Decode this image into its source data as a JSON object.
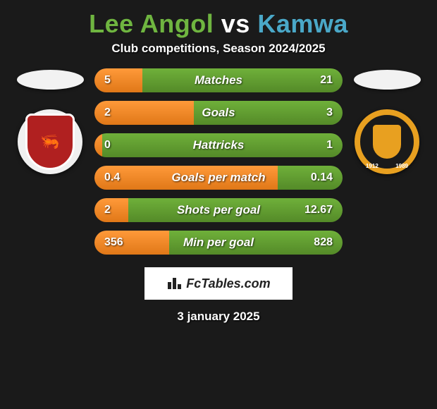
{
  "header": {
    "title_a": "Lee Angol",
    "vs": "vs",
    "title_b": "Kamwa",
    "color_a": "#6fb540",
    "color_b": "#4aa8c8",
    "subtitle": "Club competitions, Season 2024/2025"
  },
  "branding": {
    "text_a": "Fc",
    "text_b": "Tables",
    "text_c": ".com"
  },
  "footer": {
    "date": "3 january 2025"
  },
  "player_a": {
    "crest_bg": "#b02020",
    "crest_glyph": "🦐"
  },
  "player_b": {
    "ring_color": "#e8a020",
    "year_left": "1912",
    "year_right": "1989"
  },
  "bar_style": {
    "color_a": "#f08828",
    "color_b": "#5f9a30",
    "height": 34,
    "radius": 17,
    "label_fontsize": 17,
    "value_fontsize": 16
  },
  "stats": [
    {
      "label": "Matches",
      "a": "5",
      "b": "21",
      "pct_a": 19.2
    },
    {
      "label": "Goals",
      "a": "2",
      "b": "3",
      "pct_a": 40.0
    },
    {
      "label": "Hattricks",
      "a": "0",
      "b": "1",
      "pct_a": 3.0
    },
    {
      "label": "Goals per match",
      "a": "0.4",
      "b": "0.14",
      "pct_a": 74.0
    },
    {
      "label": "Shots per goal",
      "a": "2",
      "b": "12.67",
      "pct_a": 13.6
    },
    {
      "label": "Min per goal",
      "a": "356",
      "b": "828",
      "pct_a": 30.1
    }
  ]
}
